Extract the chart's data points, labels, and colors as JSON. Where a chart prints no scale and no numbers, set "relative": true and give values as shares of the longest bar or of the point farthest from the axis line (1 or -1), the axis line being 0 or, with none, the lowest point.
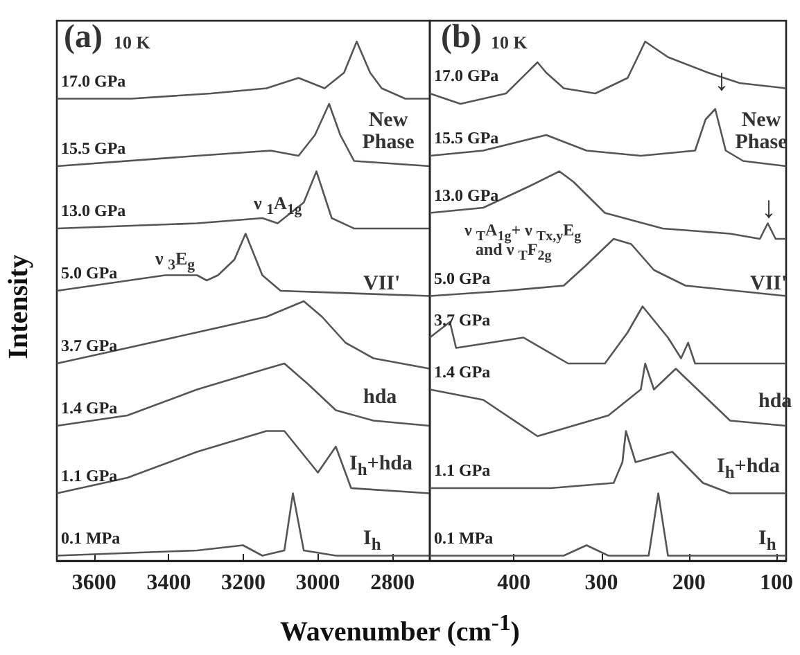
{
  "chart_data": [
    {
      "type": "line",
      "title": "(a)",
      "subtitle": "10 K",
      "xlabel": "Wavenumber (cm$^{-1}$)",
      "ylabel": "Intensity",
      "relative": true,
      "xlim": [
        3700,
        2700
      ],
      "xticks": [
        3600,
        3400,
        3200,
        3000,
        2800
      ],
      "legend": false,
      "grid": false,
      "marker": "none",
      "line_style": "solid",
      "annotations": [
        "New Phase",
        "ν $_{3}$E$_{g}$",
        "ν $_{1}$A$_{1g}$",
        "VII'",
        "hda",
        "I$_{h}$+hda",
        "I$_{h}$"
      ],
      "series": [
        {
          "name": "17.0 GPa",
          "color": "#555555",
          "x": [
            3700,
            3500,
            3287,
            3138,
            3052,
            2982,
            2930,
            2896,
            2860,
            2829,
            2766,
            2700
          ],
          "values": [
            0.89,
            0.89,
            0.9,
            0.91,
            0.93,
            0.91,
            0.94,
            1.0,
            0.94,
            0.91,
            0.89,
            0.89
          ]
        },
        {
          "name": "15.5 GPa",
          "color": "#555555",
          "x": [
            3700,
            3324,
            3127,
            3052,
            3008,
            2970,
            2940,
            2903,
            2700
          ],
          "values": [
            0.76,
            0.78,
            0.79,
            0.78,
            0.82,
            0.88,
            0.82,
            0.77,
            0.76
          ]
        },
        {
          "name": "13.0 GPa",
          "color": "#555555",
          "x": [
            3700,
            3324,
            3149,
            3108,
            3038,
            3004,
            2963,
            2903,
            2700
          ],
          "values": [
            0.64,
            0.65,
            0.66,
            0.65,
            0.69,
            0.75,
            0.66,
            0.64,
            0.64
          ]
        },
        {
          "name": "5.0 GPa",
          "color": "#555555",
          "x": [
            3700,
            3410,
            3324,
            3298,
            3268,
            3224,
            3194,
            3149,
            3100,
            2700
          ],
          "values": [
            0.52,
            0.55,
            0.55,
            0.54,
            0.55,
            0.58,
            0.63,
            0.55,
            0.52,
            0.51
          ]
        },
        {
          "name": "3.7 GPa",
          "color": "#555555",
          "x": [
            3700,
            3511,
            3324,
            3138,
            3038,
            2989,
            2926,
            2851,
            2700
          ],
          "values": [
            0.38,
            0.41,
            0.44,
            0.47,
            0.5,
            0.47,
            0.42,
            0.39,
            0.37
          ]
        },
        {
          "name": "1.4 GPa",
          "color": "#555555",
          "x": [
            3700,
            3511,
            3324,
            3138,
            3090,
            3026,
            2952,
            2851,
            2700
          ],
          "values": [
            0.26,
            0.28,
            0.33,
            0.37,
            0.38,
            0.34,
            0.29,
            0.27,
            0.26
          ]
        },
        {
          "name": "1.1 GPa",
          "color": "#555555",
          "x": [
            3700,
            3511,
            3324,
            3138,
            3090,
            3000,
            2952,
            2911,
            2700
          ],
          "values": [
            0.13,
            0.16,
            0.21,
            0.25,
            0.25,
            0.17,
            0.22,
            0.14,
            0.13
          ]
        },
        {
          "name": "0.1 MPa",
          "color": "#555555",
          "x": [
            3700,
            3324,
            3201,
            3149,
            3090,
            3067,
            3038,
            2952,
            2700
          ],
          "values": [
            0.01,
            0.02,
            0.03,
            0.01,
            0.02,
            0.13,
            0.02,
            0.01,
            0.01
          ]
        }
      ]
    },
    {
      "type": "line",
      "title": "(b)",
      "subtitle": "10 K",
      "relative": true,
      "xlim": [
        496,
        89
      ],
      "xticks": [
        400,
        300,
        200,
        100
      ],
      "legend": false,
      "grid": false,
      "marker": "none",
      "line_style": "solid",
      "annotations": [
        "New Phase",
        "ν $_{T}$A$_{1g}$+ ν $_{Tx,y}$E$_{g}$",
        "and ν $_{T}$F$_{2g}$",
        "VII'",
        "hda",
        "I$_{h}$+hda",
        "I$_{h}$",
        "↓",
        "↓"
      ],
      "series": [
        {
          "name": "17.0 GPa",
          "color": "#555555",
          "x": [
            496,
            461,
            409,
            373,
            363,
            343,
            307,
            270,
            250,
            224,
            178,
            142,
            89
          ],
          "values": [
            0.9,
            0.88,
            0.9,
            0.96,
            0.94,
            0.91,
            0.9,
            0.93,
            1.0,
            0.97,
            0.94,
            0.92,
            0.91
          ]
        },
        {
          "name": "15.5 GPa",
          "color": "#555555",
          "x": [
            496,
            435,
            363,
            317,
            255,
            193,
            181,
            170,
            158,
            138,
            89
          ],
          "values": [
            0.78,
            0.79,
            0.82,
            0.79,
            0.78,
            0.79,
            0.85,
            0.87,
            0.79,
            0.77,
            0.76
          ]
        },
        {
          "name": "13.0 GPa",
          "color": "#555555",
          "x": [
            496,
            435,
            384,
            348,
            332,
            296,
            230,
            153,
            119,
            110,
            101,
            89
          ],
          "values": [
            0.67,
            0.68,
            0.72,
            0.75,
            0.73,
            0.67,
            0.64,
            0.63,
            0.62,
            0.65,
            0.62,
            0.62
          ]
        },
        {
          "name": "5.0 GPa",
          "color": "#555555",
          "x": [
            496,
            409,
            343,
            317,
            286,
            266,
            240,
            204,
            89
          ],
          "values": [
            0.51,
            0.52,
            0.53,
            0.57,
            0.62,
            0.61,
            0.56,
            0.53,
            0.51
          ]
        },
        {
          "name": "3.7 GPa",
          "color": "#555555",
          "x": [
            496,
            473,
            466,
            389,
            338,
            296,
            270,
            253,
            224,
            209,
            201,
            193,
            142,
            89
          ],
          "values": [
            0.43,
            0.46,
            0.41,
            0.43,
            0.38,
            0.38,
            0.44,
            0.49,
            0.43,
            0.39,
            0.42,
            0.38,
            0.38,
            0.38
          ]
        },
        {
          "name": "1.4 GPa",
          "color": "#555555",
          "x": [
            496,
            435,
            373,
            292,
            255,
            250,
            240,
            215,
            184,
            153,
            89
          ],
          "values": [
            0.33,
            0.31,
            0.24,
            0.28,
            0.33,
            0.38,
            0.33,
            0.37,
            0.32,
            0.27,
            0.26
          ]
        },
        {
          "name": "1.1 GPa",
          "color": "#555555",
          "x": [
            496,
            358,
            286,
            276,
            272,
            261,
            219,
            184,
            153,
            89
          ],
          "values": [
            0.14,
            0.14,
            0.15,
            0.19,
            0.25,
            0.19,
            0.21,
            0.15,
            0.13,
            0.13
          ]
        },
        {
          "name": "0.1 MPa",
          "color": "#555555",
          "x": [
            496,
            343,
            317,
            292,
            246,
            235,
            224,
            89
          ],
          "values": [
            0.01,
            0.01,
            0.03,
            0.01,
            0.01,
            0.13,
            0.01,
            0.01
          ]
        }
      ]
    }
  ]
}
